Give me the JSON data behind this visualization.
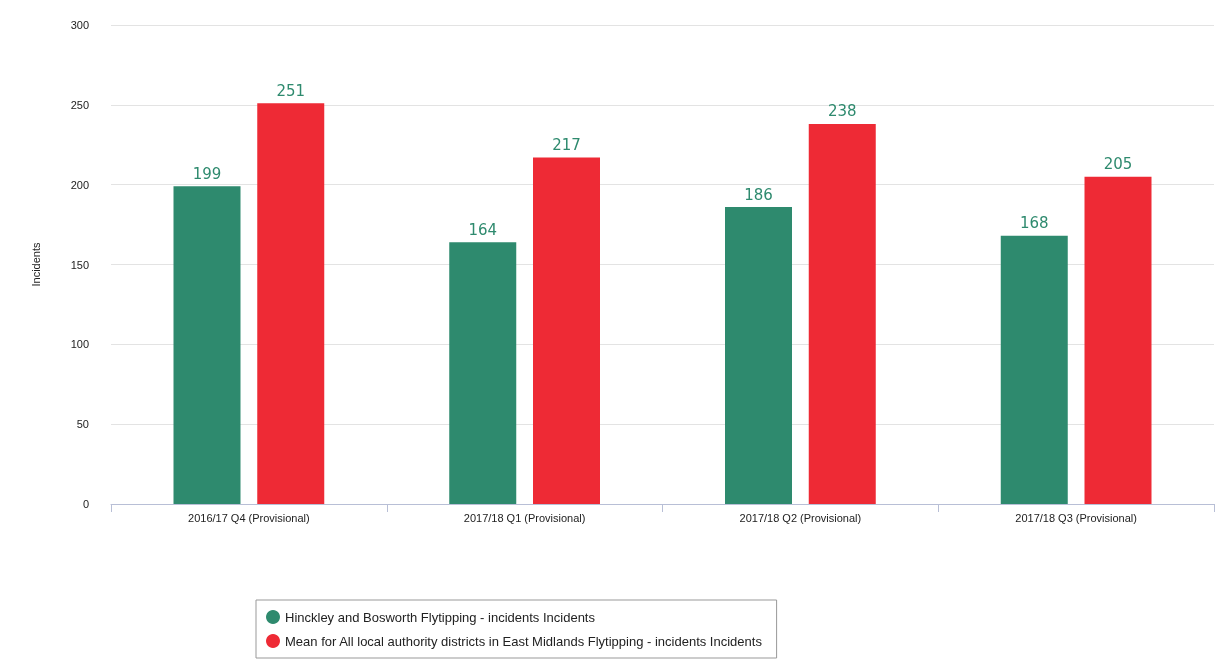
{
  "chart_data": {
    "type": "bar",
    "ylabel": "Incidents",
    "categories": [
      "2016/17 Q4 (Provisional)",
      "2017/18 Q1 (Provisional)",
      "2017/18 Q2 (Provisional)",
      "2017/18 Q3 (Provisional)"
    ],
    "series": [
      {
        "name": "Hinckley and Bosworth Flytipping - incidents Incidents",
        "color": "#2e8a6e",
        "values": [
          199,
          164,
          186,
          168
        ]
      },
      {
        "name": "Mean for All local authority districts in East Midlands Flytipping - incidents Incidents",
        "color": "#ee2a35",
        "values": [
          251,
          217,
          238,
          205
        ]
      }
    ],
    "ylim": [
      0,
      300
    ],
    "yticks": [
      0,
      50,
      100,
      150,
      200,
      250,
      300
    ],
    "grid": "y",
    "legend": "bottom",
    "data_labels": true
  }
}
